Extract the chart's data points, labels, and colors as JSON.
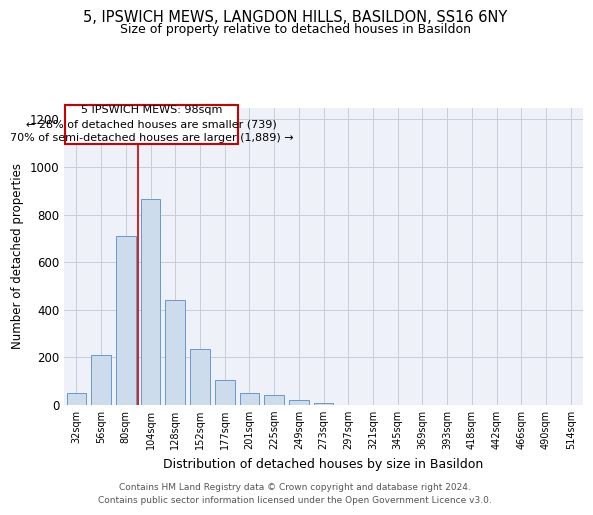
{
  "title_line1": "5, IPSWICH MEWS, LANGDON HILLS, BASILDON, SS16 6NY",
  "title_line2": "Size of property relative to detached houses in Basildon",
  "xlabel": "Distribution of detached houses by size in Basildon",
  "ylabel": "Number of detached properties",
  "bins": [
    "32sqm",
    "56sqm",
    "80sqm",
    "104sqm",
    "128sqm",
    "152sqm",
    "177sqm",
    "201sqm",
    "225sqm",
    "249sqm",
    "273sqm",
    "297sqm",
    "321sqm",
    "345sqm",
    "369sqm",
    "393sqm",
    "418sqm",
    "442sqm",
    "466sqm",
    "490sqm",
    "514sqm"
  ],
  "values": [
    50,
    210,
    710,
    865,
    440,
    235,
    105,
    50,
    40,
    20,
    10,
    0,
    0,
    0,
    0,
    0,
    0,
    0,
    0,
    0,
    0
  ],
  "bar_color": "#cddcec",
  "bar_edge_color": "#6699cc",
  "vline_color": "#cc0000",
  "vline_pos": 3,
  "annotation_text": "5 IPSWICH MEWS: 98sqm\n← 28% of detached houses are smaller (739)\n70% of semi-detached houses are larger (1,889) →",
  "annotation_box_facecolor": "#ffffff",
  "annotation_box_edgecolor": "#cc0000",
  "ylim": [
    0,
    1250
  ],
  "yticks": [
    0,
    200,
    400,
    600,
    800,
    1000,
    1200
  ],
  "footer_text": "Contains HM Land Registry data © Crown copyright and database right 2024.\nContains public sector information licensed under the Open Government Licence v3.0.",
  "bg_color": "#eef2f8",
  "grid_color": "#c5cdd8",
  "fig_facecolor": "#ffffff"
}
